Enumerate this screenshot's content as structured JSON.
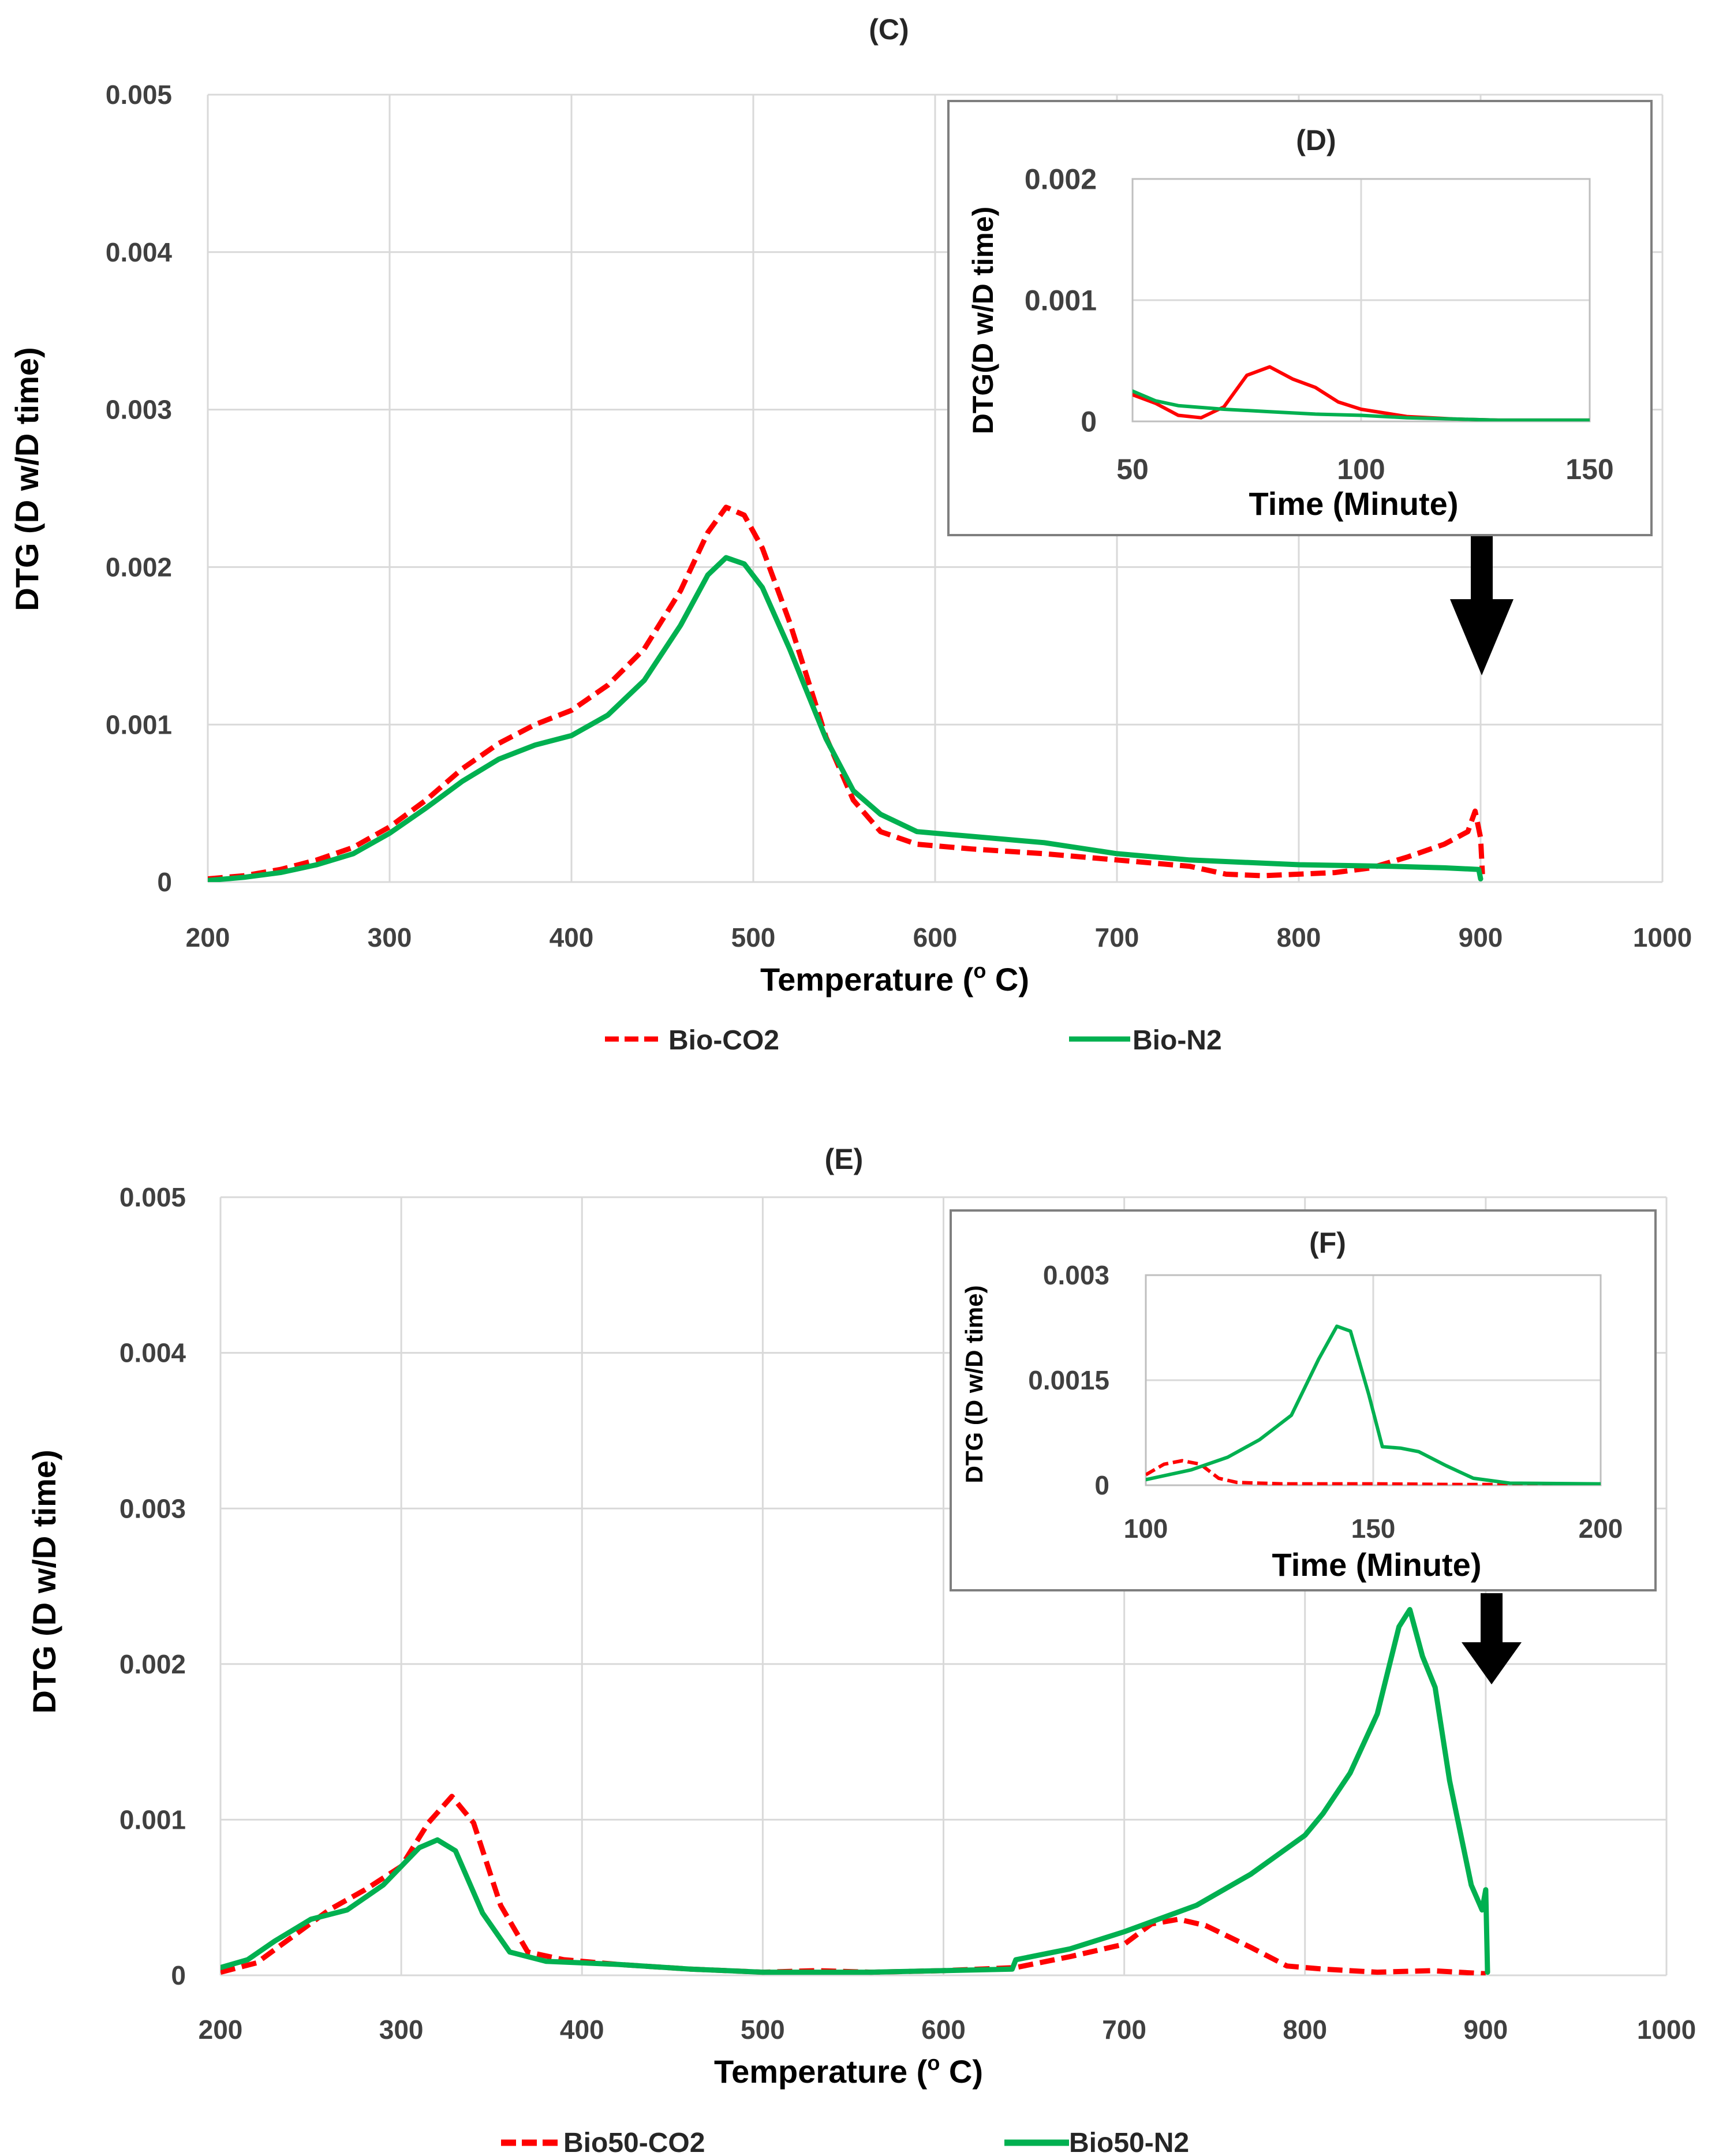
{
  "colors": {
    "co2": "#ff0000",
    "n2": "#00b050",
    "grid": "#d9d9d9",
    "arrow": "#000000"
  },
  "chart_data": [
    {
      "id": "C",
      "type": "line",
      "title": "(C)",
      "xlabel": "Temperature (o C)",
      "xlabel_main": "Temperature (",
      "xlabel_sup": "o",
      "xlabel_tail": " C)",
      "ylabel": "DTG (D w/D time)",
      "xlim": [
        200,
        1000
      ],
      "ylim": [
        0,
        0.005
      ],
      "xticks": [
        200,
        300,
        400,
        500,
        600,
        700,
        800,
        900,
        1000
      ],
      "xtick_labels": [
        "200",
        "300",
        "400",
        "500",
        "600",
        "700",
        "800",
        "900",
        "1000"
      ],
      "yticks": [
        0,
        0.001,
        0.002,
        0.003,
        0.004,
        0.005
      ],
      "ytick_labels": [
        "0",
        "0.001",
        "0.002",
        "0.003",
        "0.004",
        "0.005"
      ],
      "grid": true,
      "legend": [
        "Bio-CO2",
        "Bio-N2"
      ],
      "series": [
        {
          "name": "Bio-CO2",
          "style": "dashed",
          "color": "#ff0000",
          "points": [
            [
              200,
              2e-05
            ],
            [
              220,
              4e-05
            ],
            [
              240,
              8e-05
            ],
            [
              260,
              0.00014
            ],
            [
              280,
              0.00022
            ],
            [
              300,
              0.00035
            ],
            [
              320,
              0.00052
            ],
            [
              340,
              0.00072
            ],
            [
              360,
              0.00088
            ],
            [
              380,
              0.001
            ],
            [
              400,
              0.00109
            ],
            [
              420,
              0.00125
            ],
            [
              440,
              0.00148
            ],
            [
              460,
              0.00185
            ],
            [
              475,
              0.00222
            ],
            [
              485,
              0.00238
            ],
            [
              495,
              0.00233
            ],
            [
              505,
              0.00212
            ],
            [
              520,
              0.00165
            ],
            [
              540,
              0.00092
            ],
            [
              555,
              0.00052
            ],
            [
              570,
              0.00032
            ],
            [
              590,
              0.00024
            ],
            [
              620,
              0.00021
            ],
            [
              660,
              0.00018
            ],
            [
              700,
              0.00014
            ],
            [
              740,
              0.0001
            ],
            [
              760,
              5e-05
            ],
            [
              780,
              4e-05
            ],
            [
              800,
              5e-05
            ],
            [
              820,
              6e-05
            ],
            [
              840,
              9e-05
            ],
            [
              860,
              0.00016
            ],
            [
              880,
              0.00024
            ],
            [
              893,
              0.00032
            ],
            [
              897,
              0.00045
            ],
            [
              900,
              0.00028
            ],
            [
              901,
              5e-05
            ]
          ]
        },
        {
          "name": "Bio-N2",
          "style": "solid",
          "color": "#00b050",
          "points": [
            [
              200,
              1e-05
            ],
            [
              220,
              3e-05
            ],
            [
              240,
              6e-05
            ],
            [
              260,
              0.00011
            ],
            [
              280,
              0.00018
            ],
            [
              300,
              0.00031
            ],
            [
              320,
              0.00047
            ],
            [
              340,
              0.00064
            ],
            [
              360,
              0.00078
            ],
            [
              380,
              0.00087
            ],
            [
              400,
              0.00093
            ],
            [
              420,
              0.00106
            ],
            [
              440,
              0.00128
            ],
            [
              460,
              0.00163
            ],
            [
              475,
              0.00195
            ],
            [
              485,
              0.00206
            ],
            [
              495,
              0.00202
            ],
            [
              505,
              0.00187
            ],
            [
              520,
              0.00148
            ],
            [
              540,
              0.00091
            ],
            [
              555,
              0.00058
            ],
            [
              570,
              0.00043
            ],
            [
              590,
              0.00032
            ],
            [
              620,
              0.00029
            ],
            [
              660,
              0.00025
            ],
            [
              700,
              0.00018
            ],
            [
              740,
              0.00014
            ],
            [
              800,
              0.00011
            ],
            [
              850,
              0.0001
            ],
            [
              880,
              9e-05
            ],
            [
              899,
              8e-05
            ],
            [
              900,
              2e-05
            ]
          ]
        }
      ],
      "inset": {
        "title": "(D)",
        "xlabel": "Time (Minute)",
        "ylabel": "DTG(D w/D time)",
        "xlim": [
          50,
          150
        ],
        "ylim": [
          0,
          0.002
        ],
        "xticks": [
          50,
          100,
          150
        ],
        "xtick_labels": [
          "50",
          "100",
          "150"
        ],
        "yticks": [
          0,
          0.001,
          0.002
        ],
        "ytick_labels": [
          "0",
          "0.001",
          "0.002"
        ],
        "series": [
          {
            "name": "Bio-CO2",
            "style": "solid",
            "color": "#ff0000",
            "points": [
              [
                50,
                0.00022
              ],
              [
                55,
                0.00015
              ],
              [
                60,
                5e-05
              ],
              [
                65,
                3e-05
              ],
              [
                70,
                0.00012
              ],
              [
                75,
                0.00038
              ],
              [
                80,
                0.00045
              ],
              [
                85,
                0.00035
              ],
              [
                90,
                0.00028
              ],
              [
                95,
                0.00016
              ],
              [
                100,
                0.0001
              ],
              [
                110,
                4e-05
              ],
              [
                120,
                2e-05
              ],
              [
                130,
                1e-05
              ],
              [
                150,
                1e-05
              ]
            ]
          },
          {
            "name": "Bio-N2",
            "style": "solid",
            "color": "#00b050",
            "points": [
              [
                50,
                0.00025
              ],
              [
                55,
                0.00017
              ],
              [
                60,
                0.00013
              ],
              [
                70,
                0.0001
              ],
              [
                80,
                8e-05
              ],
              [
                90,
                6e-05
              ],
              [
                100,
                5e-05
              ],
              [
                110,
                3e-05
              ],
              [
                120,
                2e-05
              ],
              [
                130,
                1e-05
              ],
              [
                150,
                1e-05
              ]
            ]
          }
        ]
      }
    },
    {
      "id": "E",
      "type": "line",
      "title": "(E)",
      "xlabel": "Temperature (o C)",
      "xlabel_main": "Temperature (",
      "xlabel_sup": "o",
      "xlabel_tail": " C)",
      "ylabel": "DTG (D w/D time)",
      "xlim": [
        200,
        1000
      ],
      "ylim": [
        0,
        0.005
      ],
      "xticks": [
        200,
        300,
        400,
        500,
        600,
        700,
        800,
        900,
        1000
      ],
      "xtick_labels": [
        "200",
        "300",
        "400",
        "500",
        "600",
        "700",
        "800",
        "900",
        "1000"
      ],
      "yticks": [
        0,
        0.001,
        0.002,
        0.003,
        0.004,
        0.005
      ],
      "ytick_labels": [
        "0",
        "0.001",
        "0.002",
        "0.003",
        "0.004",
        "0.005"
      ],
      "grid": true,
      "legend": [
        "Bio50-CO2",
        "Bio50-N2"
      ],
      "series": [
        {
          "name": "Bio50-CO2",
          "style": "dashed",
          "color": "#ff0000",
          "points": [
            [
              200,
              2e-05
            ],
            [
              220,
              8e-05
            ],
            [
              240,
              0.00025
            ],
            [
              260,
              0.00042
            ],
            [
              280,
              0.00055
            ],
            [
              300,
              0.0007
            ],
            [
              315,
              0.00098
            ],
            [
              328,
              0.00115
            ],
            [
              340,
              0.00098
            ],
            [
              355,
              0.00045
            ],
            [
              370,
              0.00015
            ],
            [
              390,
              0.0001
            ],
            [
              420,
              7e-05
            ],
            [
              460,
              4e-05
            ],
            [
              500,
              2e-05
            ],
            [
              530,
              3e-05
            ],
            [
              560,
              2e-05
            ],
            [
              600,
              3e-05
            ],
            [
              640,
              5e-05
            ],
            [
              670,
              0.00012
            ],
            [
              700,
              0.0002
            ],
            [
              715,
              0.00033
            ],
            [
              730,
              0.00036
            ],
            [
              745,
              0.00032
            ],
            [
              770,
              0.00018
            ],
            [
              790,
              6e-05
            ],
            [
              810,
              4e-05
            ],
            [
              840,
              2e-05
            ],
            [
              870,
              3e-05
            ],
            [
              900,
              1e-05
            ]
          ]
        },
        {
          "name": "Bio50-N2",
          "style": "solid",
          "color": "#00b050",
          "points": [
            [
              200,
              5e-05
            ],
            [
              215,
              0.0001
            ],
            [
              230,
              0.00022
            ],
            [
              250,
              0.00036
            ],
            [
              270,
              0.00042
            ],
            [
              290,
              0.00058
            ],
            [
              310,
              0.00082
            ],
            [
              320,
              0.00087
            ],
            [
              330,
              0.0008
            ],
            [
              345,
              0.0004
            ],
            [
              360,
              0.00015
            ],
            [
              380,
              9e-05
            ],
            [
              420,
              7e-05
            ],
            [
              460,
              4e-05
            ],
            [
              500,
              2e-05
            ],
            [
              560,
              2e-05
            ],
            [
              600,
              3e-05
            ],
            [
              638,
              4e-05
            ],
            [
              640,
              0.0001
            ],
            [
              670,
              0.00017
            ],
            [
              700,
              0.00028
            ],
            [
              740,
              0.00045
            ],
            [
              770,
              0.00065
            ],
            [
              800,
              0.0009
            ],
            [
              810,
              0.00104
            ],
            [
              825,
              0.0013
            ],
            [
              840,
              0.00168
            ],
            [
              852,
              0.00224
            ],
            [
              858,
              0.00235
            ],
            [
              865,
              0.00205
            ],
            [
              872,
              0.00185
            ],
            [
              880,
              0.00125
            ],
            [
              892,
              0.00058
            ],
            [
              898,
              0.00042
            ],
            [
              900,
              0.00055
            ],
            [
              901,
              2e-05
            ]
          ]
        }
      ],
      "inset": {
        "title": "(F)",
        "xlabel": "Time (Minute)",
        "ylabel": "DTG (D w/D time)",
        "xlim": [
          100,
          200
        ],
        "ylim": [
          0,
          0.003
        ],
        "xticks": [
          100,
          150,
          200
        ],
        "xtick_labels": [
          "100",
          "150",
          "200"
        ],
        "yticks": [
          0,
          0.0015,
          0.003
        ],
        "ytick_labels": [
          "0",
          "0.0015",
          "0.003"
        ],
        "series": [
          {
            "name": "Bio50-CO2",
            "style": "dashed",
            "color": "#ff0000",
            "points": [
              [
                100,
                0.00015
              ],
              [
                104,
                0.0003
              ],
              [
                108,
                0.00035
              ],
              [
                112,
                0.0003
              ],
              [
                116,
                0.0001
              ],
              [
                120,
                4e-05
              ],
              [
                130,
                2e-05
              ],
              [
                150,
                2e-05
              ],
              [
                170,
                1e-05
              ],
              [
                200,
                1e-05
              ]
            ]
          },
          {
            "name": "Bio50-N2",
            "style": "solid",
            "color": "#00b050",
            "points": [
              [
                100,
                8e-05
              ],
              [
                110,
                0.00022
              ],
              [
                118,
                0.0004
              ],
              [
                125,
                0.00065
              ],
              [
                132,
                0.001
              ],
              [
                138,
                0.0018
              ],
              [
                142,
                0.00227
              ],
              [
                145,
                0.0022
              ],
              [
                149,
                0.0013
              ],
              [
                152,
                0.00055
              ],
              [
                156,
                0.00053
              ],
              [
                160,
                0.00048
              ],
              [
                166,
                0.00028
              ],
              [
                172,
                0.0001
              ],
              [
                180,
                3e-05
              ],
              [
                200,
                2e-05
              ]
            ]
          }
        ]
      }
    }
  ]
}
